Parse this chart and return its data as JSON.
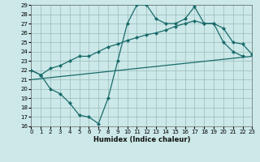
{
  "xlabel": "Humidex (Indice chaleur)",
  "xlim": [
    0,
    23
  ],
  "ylim": [
    16,
    29
  ],
  "xticks": [
    0,
    1,
    2,
    3,
    4,
    5,
    6,
    7,
    8,
    9,
    10,
    11,
    12,
    13,
    14,
    15,
    16,
    17,
    18,
    19,
    20,
    21,
    22,
    23
  ],
  "yticks": [
    16,
    17,
    18,
    19,
    20,
    21,
    22,
    23,
    24,
    25,
    26,
    27,
    28,
    29
  ],
  "bg_color": "#cce8e8",
  "grid_color": "#99bbbb",
  "line_color": "#1a6b6b",
  "line1_x": [
    0,
    1,
    2,
    3,
    4,
    5,
    6,
    7,
    8,
    9,
    10,
    11,
    12,
    13,
    14,
    15,
    16,
    17,
    18,
    19,
    20,
    21,
    22
  ],
  "line1_y": [
    22,
    21.5,
    20,
    19.5,
    18.5,
    17.2,
    17.0,
    16.3,
    19.0,
    23.0,
    27.0,
    29.0,
    29.0,
    27.5,
    27.0,
    27.0,
    27.5,
    28.8,
    27.0,
    27.0,
    25.0,
    24.0,
    23.5
  ],
  "line2_x": [
    0,
    1,
    2,
    3,
    4,
    5,
    6,
    7,
    8,
    9,
    10,
    11,
    12,
    13,
    14,
    15,
    16,
    17,
    18,
    19,
    20,
    21,
    22,
    23
  ],
  "line2_y": [
    22.0,
    21.5,
    22.2,
    22.5,
    23.0,
    23.5,
    23.5,
    24.0,
    24.5,
    24.8,
    25.2,
    25.5,
    25.8,
    26.0,
    26.3,
    26.7,
    27.0,
    27.3,
    27.0,
    27.0,
    26.5,
    25.0,
    24.8,
    23.7
  ],
  "line3_x": [
    0,
    23
  ],
  "line3_y": [
    21.0,
    23.5
  ],
  "marker_size": 2.5,
  "lw": 0.9
}
